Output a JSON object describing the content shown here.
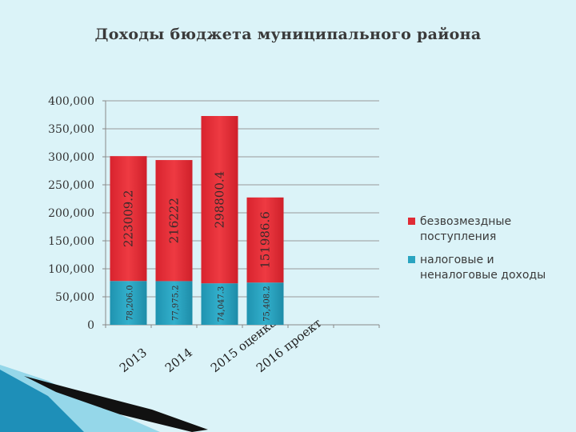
{
  "title": "Доходы бюджета муниципального района",
  "chart_data": {
    "type": "bar",
    "stacked": true,
    "categories": [
      "2013",
      "2014",
      "2015 оценка",
      "2016 проект"
    ],
    "series": [
      {
        "name": "налоговые и неналоговые доходы",
        "color": "#2aa4c0",
        "values": [
          78206.0,
          77975.2,
          74047.3,
          75408.2
        ],
        "value_labels": [
          "78,206.0",
          "77,975.2",
          "74,047.3",
          "75,408.2"
        ]
      },
      {
        "name": "безвозмездные поступления",
        "color": "#e02b35",
        "values": [
          223009.2,
          216222,
          298800.4,
          151986.6
        ],
        "value_labels": [
          "223009.2",
          "216222",
          "298800.4",
          "151986.6"
        ]
      }
    ],
    "y_ticks": [
      "0",
      "50,000",
      "100,000",
      "150,000",
      "200,000",
      "250,000",
      "300,000",
      "350,000",
      "400,000"
    ],
    "ylim": [
      0,
      400000
    ],
    "slots": 6,
    "grid": true,
    "legend_position": "right"
  }
}
